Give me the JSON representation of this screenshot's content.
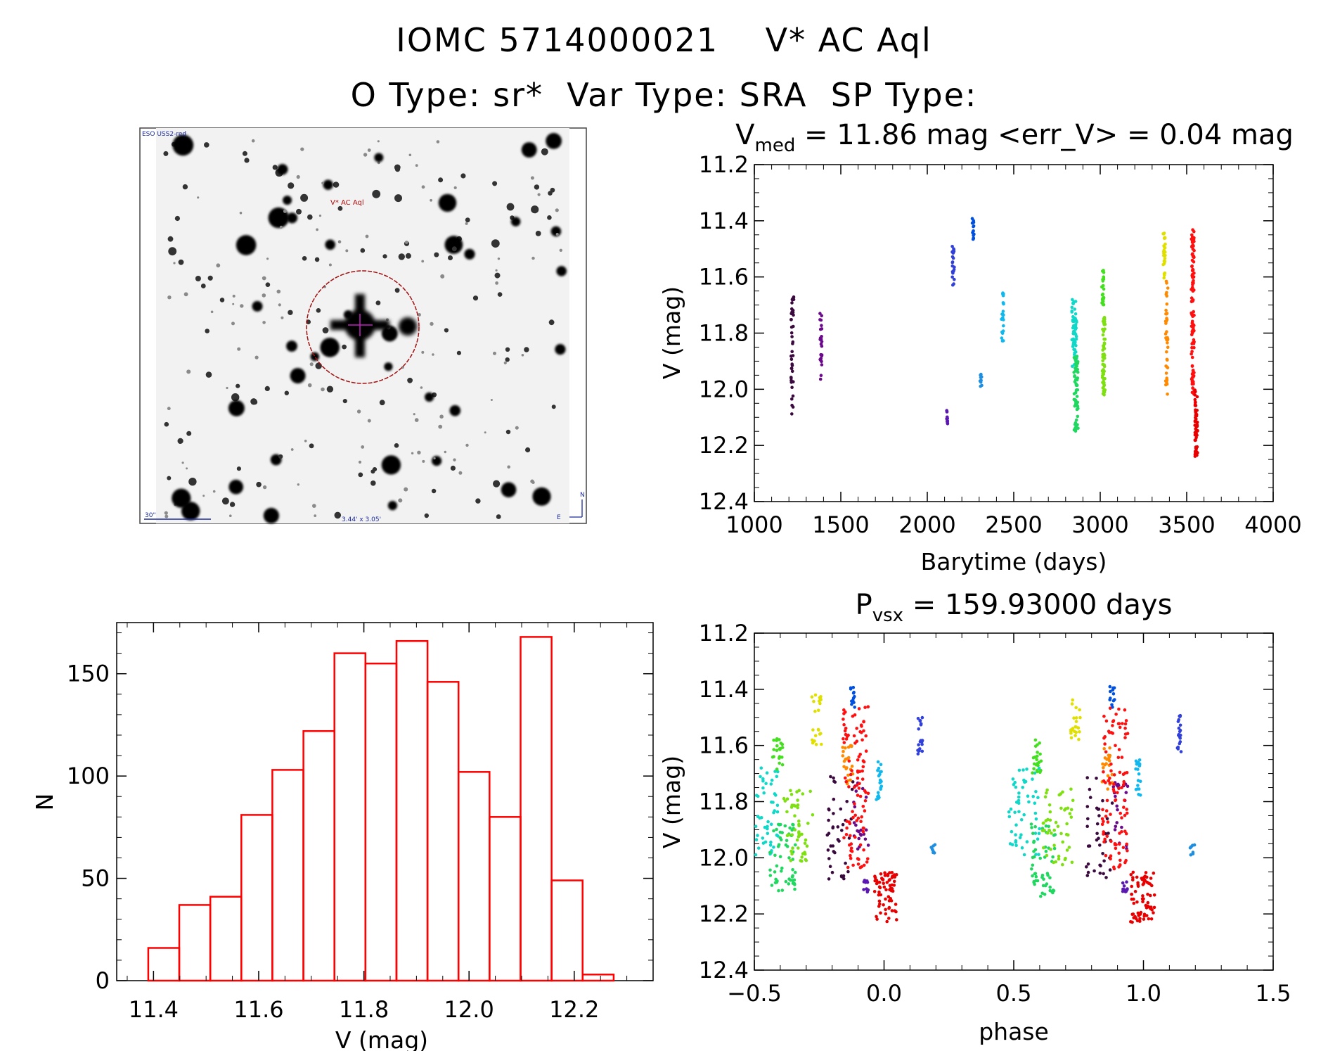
{
  "header": {
    "line1": "IOMC 5714000021    V* AC Aql",
    "line2": "O Type: sr*  Var Type: SRA  SP Type:"
  },
  "finder": {
    "survey_label": "ESO USS2-red",
    "target_label": "V* AC Aql",
    "scale_label": "30\"",
    "fov_label": "3.44' x 3.05'",
    "north_label": "N",
    "east_label": "E"
  },
  "colors": {
    "histogram": "#ff0000",
    "axis": "#000000"
  },
  "chart_data": [
    {
      "id": "lightcurve",
      "type": "scatter",
      "title_main": "V",
      "title_sub": "med",
      "title_rest": " = 11.86 mag <err_V> = 0.04 mag",
      "xlabel": "Barytime (days)",
      "ylabel": "V (mag)",
      "xlim": [
        1000,
        4000
      ],
      "ylim": [
        11.2,
        12.4
      ],
      "y_inverted": true,
      "xticks": [
        1000,
        1500,
        2000,
        2500,
        3000,
        3500,
        4000
      ],
      "yticks": [
        11.2,
        11.4,
        11.6,
        11.8,
        12.0,
        12.2,
        12.4
      ],
      "series": [
        {
          "name": "s1",
          "color": "#3a0a3e",
          "x": 1220,
          "xspread": 8,
          "ymin": 11.66,
          "ymax": 12.09,
          "n": 40
        },
        {
          "name": "s2",
          "color": "#6a0a8a",
          "x": 1385,
          "xspread": 6,
          "ymin": 11.73,
          "ymax": 11.97,
          "n": 26
        },
        {
          "name": "s3",
          "color": "#5a18b0",
          "x": 2115,
          "xspread": 5,
          "ymin": 12.07,
          "ymax": 12.14,
          "n": 12
        },
        {
          "name": "s4",
          "color": "#3040d8",
          "x": 2150,
          "xspread": 6,
          "ymin": 11.49,
          "ymax": 11.63,
          "n": 22
        },
        {
          "name": "s5",
          "color": "#0050e0",
          "x": 2265,
          "xspread": 5,
          "ymin": 11.39,
          "ymax": 11.47,
          "n": 14
        },
        {
          "name": "s6",
          "color": "#1e8ee0",
          "x": 2310,
          "xspread": 5,
          "ymin": 11.93,
          "ymax": 11.99,
          "n": 10
        },
        {
          "name": "s7",
          "color": "#10b8ee",
          "x": 2435,
          "xspread": 6,
          "ymin": 11.65,
          "ymax": 11.83,
          "n": 24
        },
        {
          "name": "s8",
          "color": "#10d8c8",
          "x": 2850,
          "xspread": 14,
          "ymin": 11.68,
          "ymax": 11.92,
          "n": 60
        },
        {
          "name": "s9",
          "color": "#20d860",
          "x": 2860,
          "xspread": 12,
          "ymin": 11.88,
          "ymax": 12.15,
          "n": 60
        },
        {
          "name": "s10",
          "color": "#44e020",
          "x": 3015,
          "xspread": 6,
          "ymin": 11.57,
          "ymax": 11.7,
          "n": 24
        },
        {
          "name": "s11",
          "color": "#7ee010",
          "x": 3020,
          "xspread": 8,
          "ymin": 11.73,
          "ymax": 12.03,
          "n": 55
        },
        {
          "name": "s12",
          "color": "#e0e000",
          "x": 3370,
          "xspread": 6,
          "ymin": 11.42,
          "ymax": 11.62,
          "n": 25
        },
        {
          "name": "s13",
          "color": "#ff8a00",
          "x": 3385,
          "xspread": 7,
          "ymin": 11.6,
          "ymax": 12.03,
          "n": 40
        },
        {
          "name": "s14",
          "color": "#ff1010",
          "x": 3535,
          "xspread": 8,
          "ymin": 11.43,
          "ymax": 12.02,
          "n": 110
        },
        {
          "name": "s15",
          "color": "#e80000",
          "x": 3555,
          "xspread": 8,
          "ymin": 12.0,
          "ymax": 12.24,
          "n": 55
        }
      ]
    },
    {
      "id": "phased",
      "type": "scatter",
      "title_main": "P",
      "title_sub": "vsx",
      "title_rest": " = 159.93000 days",
      "xlabel": "phase",
      "ylabel": "V (mag)",
      "xlim": [
        -0.5,
        1.5
      ],
      "ylim": [
        11.2,
        12.4
      ],
      "y_inverted": true,
      "xticks": [
        -0.5,
        0.0,
        0.5,
        1.0,
        1.5
      ],
      "xtick_labels": [
        "−0.5",
        "0.0",
        "0.5",
        "1.0",
        "1.5"
      ],
      "yticks": [
        11.2,
        11.4,
        11.6,
        11.8,
        12.0,
        12.2,
        12.4
      ],
      "series": [
        {
          "name": "p1",
          "color": "#3a0a3e",
          "x": -0.17,
          "xspread": 0.05,
          "ymin": 11.7,
          "ymax": 12.09,
          "n": 40
        },
        {
          "name": "p2",
          "color": "#6a0a8a",
          "x": -0.09,
          "xspread": 0.03,
          "ymin": 11.73,
          "ymax": 11.97,
          "n": 22
        },
        {
          "name": "p3",
          "color": "#5a18b0",
          "x": -0.07,
          "xspread": 0.01,
          "ymin": 12.08,
          "ymax": 12.13,
          "n": 10
        },
        {
          "name": "p4",
          "color": "#3040d8",
          "x": 0.14,
          "xspread": 0.01,
          "ymin": 11.49,
          "ymax": 11.63,
          "n": 20
        },
        {
          "name": "p5",
          "color": "#0050e0",
          "x": -0.12,
          "xspread": 0.01,
          "ymin": 11.39,
          "ymax": 11.47,
          "n": 12
        },
        {
          "name": "p6",
          "color": "#1e8ee0",
          "x": 0.19,
          "xspread": 0.01,
          "ymin": 11.95,
          "ymax": 11.99,
          "n": 8
        },
        {
          "name": "p7",
          "color": "#10b8ee",
          "x": -0.02,
          "xspread": 0.01,
          "ymin": 11.65,
          "ymax": 11.8,
          "n": 20
        },
        {
          "name": "p8",
          "color": "#10d8c8",
          "x": -0.46,
          "xspread": 0.06,
          "ymin": 11.68,
          "ymax": 11.99,
          "n": 55
        },
        {
          "name": "p9",
          "color": "#20d860",
          "x": -0.39,
          "xspread": 0.05,
          "ymin": 11.88,
          "ymax": 12.14,
          "n": 55
        },
        {
          "name": "p10",
          "color": "#44e020",
          "x": -0.41,
          "xspread": 0.02,
          "ymin": 11.57,
          "ymax": 11.7,
          "n": 22
        },
        {
          "name": "p11",
          "color": "#7ee010",
          "x": -0.33,
          "xspread": 0.06,
          "ymin": 11.75,
          "ymax": 12.03,
          "n": 50
        },
        {
          "name": "p12",
          "color": "#e0e000",
          "x": -0.26,
          "xspread": 0.02,
          "ymin": 11.42,
          "ymax": 11.6,
          "n": 22
        },
        {
          "name": "p13",
          "color": "#ff8a00",
          "x": -0.14,
          "xspread": 0.02,
          "ymin": 11.6,
          "ymax": 11.76,
          "n": 22
        },
        {
          "name": "p14",
          "color": "#ff1010",
          "x": -0.11,
          "xspread": 0.05,
          "ymin": 11.46,
          "ymax": 12.04,
          "n": 100
        },
        {
          "name": "p15",
          "color": "#e80000",
          "x": 0.0,
          "xspread": 0.05,
          "ymin": 12.05,
          "ymax": 12.23,
          "n": 70
        }
      ]
    },
    {
      "id": "histogram",
      "type": "bar",
      "xlabel": "V (mag)",
      "ylabel": "N",
      "xlim": [
        11.33,
        12.35
      ],
      "ylim": [
        0,
        175
      ],
      "xticks": [
        11.4,
        11.6,
        11.8,
        12.0,
        12.2
      ],
      "yticks": [
        0,
        50,
        100,
        150
      ],
      "bin_edges": [
        11.39,
        11.449,
        11.508,
        11.567,
        11.626,
        11.685,
        11.744,
        11.803,
        11.862,
        11.921,
        11.98,
        12.039,
        12.098,
        12.157,
        12.216,
        12.275
      ],
      "values": [
        16,
        37,
        41,
        81,
        103,
        122,
        160,
        155,
        166,
        146,
        102,
        80,
        168,
        49,
        3
      ]
    }
  ]
}
